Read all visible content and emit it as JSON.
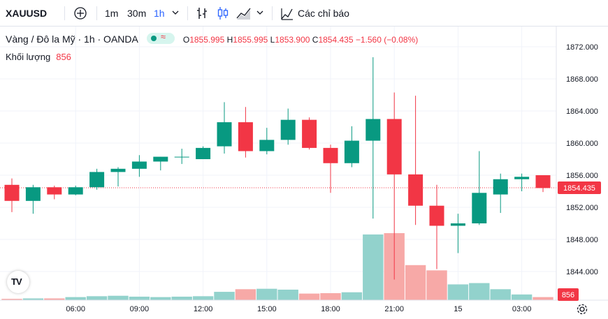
{
  "toolbar": {
    "symbol": "XAUUSD",
    "intervals": [
      "1m",
      "30m",
      "1h"
    ],
    "active_interval": "1h",
    "indicators_label": "Các chỉ báo",
    "icons": [
      "plus-circle-icon",
      "chevron-down-icon",
      "bar-style-icon",
      "candle-style-icon",
      "area-style-icon",
      "chevron-down-icon",
      "indicators-icon"
    ]
  },
  "legend": {
    "title": "Vàng / Đô la Mỹ · 1h · OANDA",
    "open_label": "O",
    "open": "1855.995",
    "high_label": "H",
    "high": "1855.995",
    "low_label": "L",
    "low": "1853.900",
    "close_label": "C",
    "close": "1854.435",
    "change": "−1.560 (−0.08%)",
    "volume_label": "Khối lượng",
    "volume_value": "856"
  },
  "logo_text": "TV",
  "colors": {
    "up": "#089981",
    "down": "#f23645",
    "up_vol": "#92d2cc",
    "down_vol": "#f7a9a7",
    "price_line": "#f23645",
    "grid": "#f0f3fa",
    "axis_text": "#131722"
  },
  "chart_data": {
    "type": "candlestick",
    "symbol": "XAUUSD",
    "timeframe": "1h",
    "y_ticks": [
      "1872.000",
      "1868.000",
      "1864.000",
      "1860.000",
      "1856.000",
      "1852.000",
      "1848.000",
      "1844.000"
    ],
    "ylim": [
      1842,
      1873
    ],
    "current_price": "1854.435",
    "current_volume": "856",
    "x_ticks": [
      {
        "label": "06:00",
        "index": 3
      },
      {
        "label": "09:00",
        "index": 6
      },
      {
        "label": "12:00",
        "index": 9
      },
      {
        "label": "15:00",
        "index": 12
      },
      {
        "label": "18:00",
        "index": 15
      },
      {
        "label": "21:00",
        "index": 18
      },
      {
        "label": "15",
        "index": 21
      },
      {
        "label": "03:00",
        "index": 24
      }
    ],
    "candles": [
      {
        "o": 1854.8,
        "h": 1855.6,
        "l": 1851.4,
        "c": 1852.8
      },
      {
        "o": 1852.8,
        "h": 1854.8,
        "l": 1851.2,
        "c": 1854.5
      },
      {
        "o": 1854.5,
        "h": 1854.7,
        "l": 1853.0,
        "c": 1853.6
      },
      {
        "o": 1853.6,
        "h": 1854.7,
        "l": 1853.5,
        "c": 1854.5
      },
      {
        "o": 1854.5,
        "h": 1856.8,
        "l": 1854.2,
        "c": 1856.4
      },
      {
        "o": 1856.4,
        "h": 1857.0,
        "l": 1854.6,
        "c": 1856.8
      },
      {
        "o": 1856.8,
        "h": 1858.5,
        "l": 1855.8,
        "c": 1857.7
      },
      {
        "o": 1857.7,
        "h": 1858.3,
        "l": 1856.6,
        "c": 1858.3
      },
      {
        "o": 1858.3,
        "h": 1859.3,
        "l": 1857.4,
        "c": 1858.3
      },
      {
        "o": 1858.0,
        "h": 1859.6,
        "l": 1858.0,
        "c": 1859.4
      },
      {
        "o": 1859.6,
        "h": 1865.1,
        "l": 1858.7,
        "c": 1862.6
      },
      {
        "o": 1862.6,
        "h": 1864.5,
        "l": 1858.2,
        "c": 1859.0
      },
      {
        "o": 1859.0,
        "h": 1861.9,
        "l": 1858.6,
        "c": 1860.4
      },
      {
        "o": 1860.4,
        "h": 1864.3,
        "l": 1859.8,
        "c": 1862.9
      },
      {
        "o": 1862.9,
        "h": 1863.2,
        "l": 1859.2,
        "c": 1859.4
      },
      {
        "o": 1859.4,
        "h": 1859.8,
        "l": 1853.8,
        "c": 1857.5
      },
      {
        "o": 1857.5,
        "h": 1862.1,
        "l": 1857.0,
        "c": 1860.3
      },
      {
        "o": 1860.3,
        "h": 1870.7,
        "l": 1850.6,
        "c": 1863.0
      },
      {
        "o": 1863.0,
        "h": 1866.3,
        "l": 1843.0,
        "c": 1856.1
      },
      {
        "o": 1856.1,
        "h": 1865.9,
        "l": 1849.8,
        "c": 1852.2
      },
      {
        "o": 1852.2,
        "h": 1854.8,
        "l": 1844.3,
        "c": 1849.7
      },
      {
        "o": 1849.7,
        "h": 1851.2,
        "l": 1846.3,
        "c": 1850.0
      },
      {
        "o": 1850.0,
        "h": 1859.0,
        "l": 1849.8,
        "c": 1853.8
      },
      {
        "o": 1853.6,
        "h": 1856.2,
        "l": 1851.3,
        "c": 1855.5
      },
      {
        "o": 1855.5,
        "h": 1856.2,
        "l": 1854.0,
        "c": 1855.8
      },
      {
        "o": 1856.0,
        "h": 1856.0,
        "l": 1853.9,
        "c": 1854.4
      }
    ],
    "volume": [
      0.3,
      0.4,
      0.4,
      0.7,
      0.9,
      1.0,
      0.8,
      0.7,
      0.8,
      0.9,
      1.9,
      2.5,
      2.6,
      2.4,
      1.5,
      1.6,
      1.8,
      15.0,
      15.3,
      8.0,
      6.8,
      3.6,
      3.9,
      2.5,
      1.3,
      0.7
    ]
  }
}
